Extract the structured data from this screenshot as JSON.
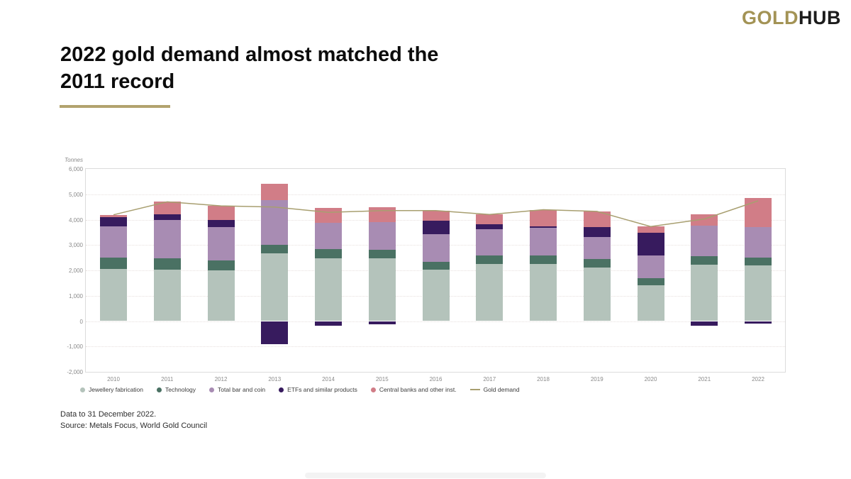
{
  "logo": {
    "gold": "GOLD",
    "hub": "HUB"
  },
  "title": {
    "line1": "2022 gold demand almost matched the",
    "line2": "2011 record"
  },
  "footer": {
    "line1": "Data to 31 December 2022.",
    "line2": "Source: Metals Focus, World Gold Council"
  },
  "accent_colors": {
    "logo_gold": "#a39355",
    "title_underline": "#b2a36e"
  },
  "chart_data": {
    "type": "bar",
    "stacked": true,
    "unit_label": "Tonnes",
    "ylim": [
      -2000,
      6000
    ],
    "ytick_step": 1000,
    "grid": "horizontal-dotted",
    "legend_position": "bottom",
    "categories": [
      "2010",
      "2011",
      "2012",
      "2013",
      "2014",
      "2015",
      "2016",
      "2017",
      "2018",
      "2019",
      "2020",
      "2021",
      "2022"
    ],
    "series": [
      {
        "name": "Jewellery fabrication",
        "color": "#b4c3bb",
        "values": [
          2051,
          2037,
          1998,
          2660,
          2481,
          2479,
          2018,
          2257,
          2241,
          2122,
          1401,
          2229,
          2190
        ]
      },
      {
        "name": "Technology",
        "color": "#4a7163",
        "values": [
          466,
          428,
          407,
          355,
          348,
          332,
          323,
          333,
          335,
          326,
          302,
          330,
          309
        ]
      },
      {
        "name": "Total bar and coin",
        "color": "#a88cb3",
        "values": [
          1205,
          1519,
          1289,
          1765,
          1055,
          1092,
          1075,
          1029,
          1090,
          871,
          896,
          1191,
          1217
        ]
      },
      {
        "name": "ETFs and similar products",
        "color": "#371b5e",
        "values": [
          389,
          236,
          279,
          -912,
          -184,
          -125,
          547,
          203,
          69,
          401,
          874,
          -189,
          -110
        ]
      },
      {
        "name": "Central banks and other inst.",
        "color": "#d17d87",
        "values": [
          79,
          481,
          569,
          629,
          584,
          577,
          394,
          379,
          656,
          605,
          255,
          463,
          1136
        ]
      }
    ],
    "line_series": {
      "name": "Gold demand",
      "color": "#a89f70",
      "values": [
        4190,
        4701,
        4542,
        4497,
        4284,
        4355,
        4357,
        4201,
        4391,
        4325,
        3728,
        4024,
        4742
      ]
    }
  }
}
